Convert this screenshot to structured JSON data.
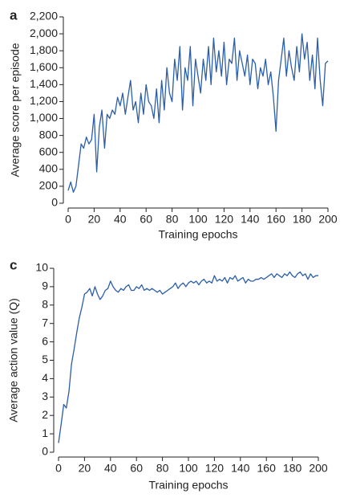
{
  "chart_data": [
    {
      "type": "line",
      "label": "a",
      "ylabel": "Average score per episode",
      "xlabel": "Training epochs",
      "color": "#2a5ea8",
      "xlim": [
        0,
        200
      ],
      "xticks": [
        0,
        20,
        40,
        60,
        80,
        100,
        120,
        140,
        160,
        180,
        200
      ],
      "ylim": [
        0,
        2200
      ],
      "yticks": [
        0,
        200,
        400,
        600,
        800,
        {
          "value": 1000,
          "label": "1,000"
        },
        {
          "value": 1200,
          "label": "1,200"
        },
        {
          "value": 1400,
          "label": "1,400"
        },
        {
          "value": 1600,
          "label": "1,600"
        },
        {
          "value": 1800,
          "label": "1,800"
        },
        {
          "value": 2000,
          "label": "2,000"
        },
        {
          "value": 2200,
          "label": "2,200"
        }
      ],
      "x": [
        0,
        2,
        4,
        6,
        8,
        10,
        12,
        14,
        16,
        18,
        20,
        22,
        24,
        26,
        28,
        30,
        32,
        34,
        36,
        38,
        40,
        42,
        44,
        46,
        48,
        50,
        52,
        54,
        56,
        58,
        60,
        62,
        64,
        66,
        68,
        70,
        72,
        74,
        76,
        78,
        80,
        82,
        84,
        86,
        88,
        90,
        92,
        94,
        96,
        98,
        100,
        102,
        104,
        106,
        108,
        110,
        112,
        114,
        116,
        118,
        120,
        122,
        124,
        126,
        128,
        130,
        132,
        134,
        136,
        138,
        140,
        142,
        144,
        146,
        148,
        150,
        152,
        154,
        156,
        158,
        160,
        162,
        164,
        166,
        168,
        170,
        172,
        174,
        176,
        178,
        180,
        182,
        184,
        186,
        188,
        190,
        192,
        194,
        196,
        198,
        200
      ],
      "values": [
        150,
        250,
        130,
        200,
        450,
        700,
        650,
        780,
        700,
        750,
        1050,
        370,
        900,
        1100,
        650,
        1050,
        1000,
        1100,
        1050,
        1250,
        1150,
        1300,
        1050,
        1250,
        1450,
        1100,
        1200,
        950,
        1300,
        1050,
        1400,
        1200,
        1150,
        1000,
        1350,
        950,
        1450,
        1100,
        1600,
        1300,
        1200,
        1700,
        1450,
        1850,
        1100,
        1600,
        1450,
        1850,
        1150,
        1700,
        1500,
        1300,
        1700,
        1450,
        1850,
        1400,
        1950,
        1550,
        1800,
        1500,
        1900,
        1400,
        1700,
        1650,
        1950,
        1450,
        1800,
        1650,
        1500,
        1750,
        1400,
        1700,
        1650,
        1350,
        1600,
        1500,
        1700,
        1400,
        1550,
        1250,
        850,
        1450,
        1700,
        1950,
        1500,
        1800,
        1600,
        1450,
        1850,
        1550,
        2000,
        1700,
        1900,
        1450,
        1750,
        1350,
        1950,
        1450,
        1150,
        1650,
        1680
      ]
    },
    {
      "type": "line",
      "label": "c",
      "ylabel": "Average action value (Q)",
      "xlabel": "Training epochs",
      "color": "#2a5ea8",
      "xlim": [
        0,
        200
      ],
      "xticks": [
        0,
        20,
        40,
        60,
        80,
        100,
        120,
        140,
        160,
        180,
        200
      ],
      "ylim": [
        0,
        10
      ],
      "yticks": [
        0,
        1,
        2,
        3,
        4,
        5,
        6,
        7,
        8,
        9,
        10
      ],
      "x": [
        0,
        2,
        4,
        6,
        8,
        10,
        12,
        14,
        16,
        18,
        20,
        22,
        24,
        26,
        28,
        30,
        32,
        34,
        36,
        38,
        40,
        42,
        44,
        46,
        48,
        50,
        52,
        54,
        56,
        58,
        60,
        62,
        64,
        66,
        68,
        70,
        72,
        74,
        76,
        78,
        80,
        82,
        84,
        86,
        88,
        90,
        92,
        94,
        96,
        98,
        100,
        102,
        104,
        106,
        108,
        110,
        112,
        114,
        116,
        118,
        120,
        122,
        124,
        126,
        128,
        130,
        132,
        134,
        136,
        138,
        140,
        142,
        144,
        146,
        148,
        150,
        152,
        154,
        156,
        158,
        160,
        162,
        164,
        166,
        168,
        170,
        172,
        174,
        176,
        178,
        180,
        182,
        184,
        186,
        188,
        190,
        192,
        194,
        196,
        198,
        200
      ],
      "values": [
        0.5,
        1.5,
        2.6,
        2.4,
        3.3,
        4.8,
        5.6,
        6.5,
        7.3,
        7.9,
        8.6,
        8.7,
        8.9,
        8.5,
        9.0,
        8.6,
        8.3,
        8.5,
        8.8,
        8.9,
        9.3,
        9.0,
        8.8,
        8.7,
        8.9,
        8.8,
        9.0,
        9.1,
        8.8,
        8.8,
        9.0,
        8.9,
        9.1,
        8.8,
        8.9,
        8.8,
        8.9,
        8.8,
        8.7,
        8.8,
        8.6,
        8.7,
        8.8,
        8.9,
        9.0,
        9.2,
        8.9,
        9.1,
        9.2,
        9.0,
        9.2,
        9.3,
        9.2,
        9.3,
        9.1,
        9.3,
        9.4,
        9.2,
        9.3,
        9.2,
        9.6,
        9.3,
        9.4,
        9.3,
        9.5,
        9.2,
        9.5,
        9.4,
        9.6,
        9.3,
        9.4,
        9.5,
        9.2,
        9.4,
        9.3,
        9.3,
        9.4,
        9.4,
        9.5,
        9.4,
        9.5,
        9.6,
        9.7,
        9.5,
        9.7,
        9.6,
        9.5,
        9.7,
        9.6,
        9.8,
        9.6,
        9.5,
        9.7,
        9.8,
        9.6,
        9.7,
        9.4,
        9.7,
        9.5,
        9.6,
        9.6
      ]
    }
  ]
}
